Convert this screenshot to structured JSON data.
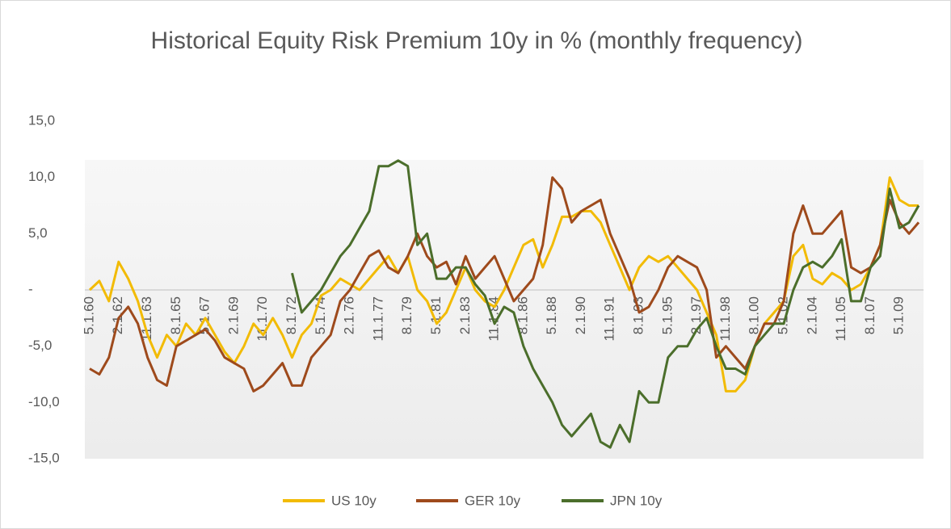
{
  "chart_data": {
    "type": "line",
    "title": "Historical Equity Risk Premium 10y in % (monthly frequency)",
    "categories": [
      "5.1.60",
      null,
      null,
      "2.1.62",
      null,
      null,
      "11.1.63",
      null,
      null,
      "8.1.65",
      null,
      null,
      "5.1.67",
      null,
      null,
      "2.1.69",
      null,
      null,
      "11.1.70",
      null,
      null,
      "8.1.72",
      null,
      null,
      "5.1.74",
      null,
      null,
      "2.1.76",
      null,
      null,
      "11.1.77",
      null,
      null,
      "8.1.79",
      null,
      null,
      "5.1.81",
      null,
      null,
      "2.1.83",
      null,
      null,
      "11.1.84",
      null,
      null,
      "8.1.86",
      null,
      null,
      "5.1.88",
      null,
      null,
      "2.1.90",
      null,
      null,
      "11.1.91",
      null,
      null,
      "8.1.93",
      null,
      null,
      "5.1.95",
      null,
      null,
      "2.1.97",
      null,
      null,
      "11.1.98",
      null,
      null,
      "8.1.00",
      null,
      null,
      "5.1.02",
      null,
      null,
      "2.1.04",
      null,
      null,
      "11.1.05",
      null,
      null,
      "8.1.07",
      null,
      null,
      "5.1.09",
      null,
      null
    ],
    "series": [
      {
        "name": "US 10y",
        "color": "#f2bb05",
        "values": [
          0,
          0.8,
          -1,
          2.5,
          1,
          -1,
          -4,
          -6,
          -4,
          -5,
          -3,
          -4,
          -2.5,
          -4,
          -5.5,
          -6.5,
          -5,
          -3,
          -4,
          -2.5,
          -4,
          -6,
          -4,
          -3,
          -0.5,
          0,
          1,
          0.5,
          0,
          1,
          2,
          3,
          1.5,
          3,
          0,
          -1,
          -3,
          -2,
          0,
          2,
          0,
          -1,
          -1.5,
          0,
          2,
          4,
          4.5,
          2,
          4,
          6.5,
          6.5,
          7,
          7,
          6,
          4,
          2,
          0,
          2,
          3,
          2.5,
          3,
          2,
          1,
          0,
          -2,
          -4,
          -9,
          -9,
          -8,
          -5,
          -3,
          -2,
          -1,
          3,
          4,
          1,
          0.5,
          1.5,
          1,
          0,
          0.5,
          2,
          4,
          10,
          8,
          7.5,
          7.5
        ]
      },
      {
        "name": "GER 10y",
        "color": "#9e4a1c",
        "values": [
          -7,
          -7.5,
          -6,
          -2.5,
          -1.5,
          -3,
          -6,
          -8,
          -8.5,
          -5,
          -4.5,
          -4,
          -3.5,
          -4.5,
          -6,
          -6.5,
          -7,
          -9,
          -8.5,
          -7.5,
          -6.5,
          -8.5,
          -8.5,
          -6,
          -5,
          -4,
          -1,
          0,
          1.5,
          3,
          3.5,
          2,
          1.5,
          3,
          5,
          3,
          2,
          2.5,
          0.5,
          3,
          1,
          2,
          3,
          1,
          -1,
          0,
          1,
          4,
          10,
          9,
          6,
          7,
          7.5,
          8,
          5,
          3,
          1,
          -2,
          -1.5,
          0,
          2,
          3,
          2.5,
          2,
          0,
          -6,
          -5,
          -6,
          -7,
          -5,
          -3,
          -3,
          -1,
          5,
          7.5,
          5,
          5,
          6,
          7,
          2,
          1.5,
          2,
          4,
          8,
          6,
          5,
          6
        ]
      },
      {
        "name": "JPN 10y",
        "color": "#4b6e2b",
        "values": [
          null,
          null,
          null,
          null,
          null,
          null,
          null,
          null,
          null,
          null,
          null,
          null,
          null,
          null,
          null,
          null,
          null,
          null,
          null,
          null,
          null,
          1.5,
          -2,
          -1,
          0,
          1.5,
          3,
          4,
          5.5,
          7,
          11,
          11,
          11.5,
          11,
          4,
          5,
          1,
          1,
          2,
          2,
          0.5,
          -0.5,
          -3,
          -1.5,
          -2,
          -5,
          -7,
          -8.5,
          -10,
          -12,
          -13,
          -12,
          -11,
          -13.5,
          -14,
          -12,
          -13.5,
          -9,
          -10,
          -10,
          -6,
          -5,
          -5,
          -3.5,
          -2.5,
          -5,
          -7,
          -7,
          -7.5,
          -5,
          -4,
          -3,
          -3,
          0,
          2,
          2.5,
          2,
          3,
          4.5,
          -1,
          -1,
          2,
          3,
          9,
          5.5,
          6,
          7.5
        ]
      }
    ],
    "ylim": [
      -15,
      15
    ],
    "yticks": [
      {
        "value": -15,
        "label": "-15,0"
      },
      {
        "value": -10,
        "label": "-10,0"
      },
      {
        "value": -5,
        "label": "-5,0"
      },
      {
        "value": 0,
        "label": "-"
      },
      {
        "value": 5,
        "label": "5,0"
      },
      {
        "value": 10,
        "label": "10,0"
      },
      {
        "value": 15,
        "label": "15,0"
      }
    ],
    "grid": false
  }
}
